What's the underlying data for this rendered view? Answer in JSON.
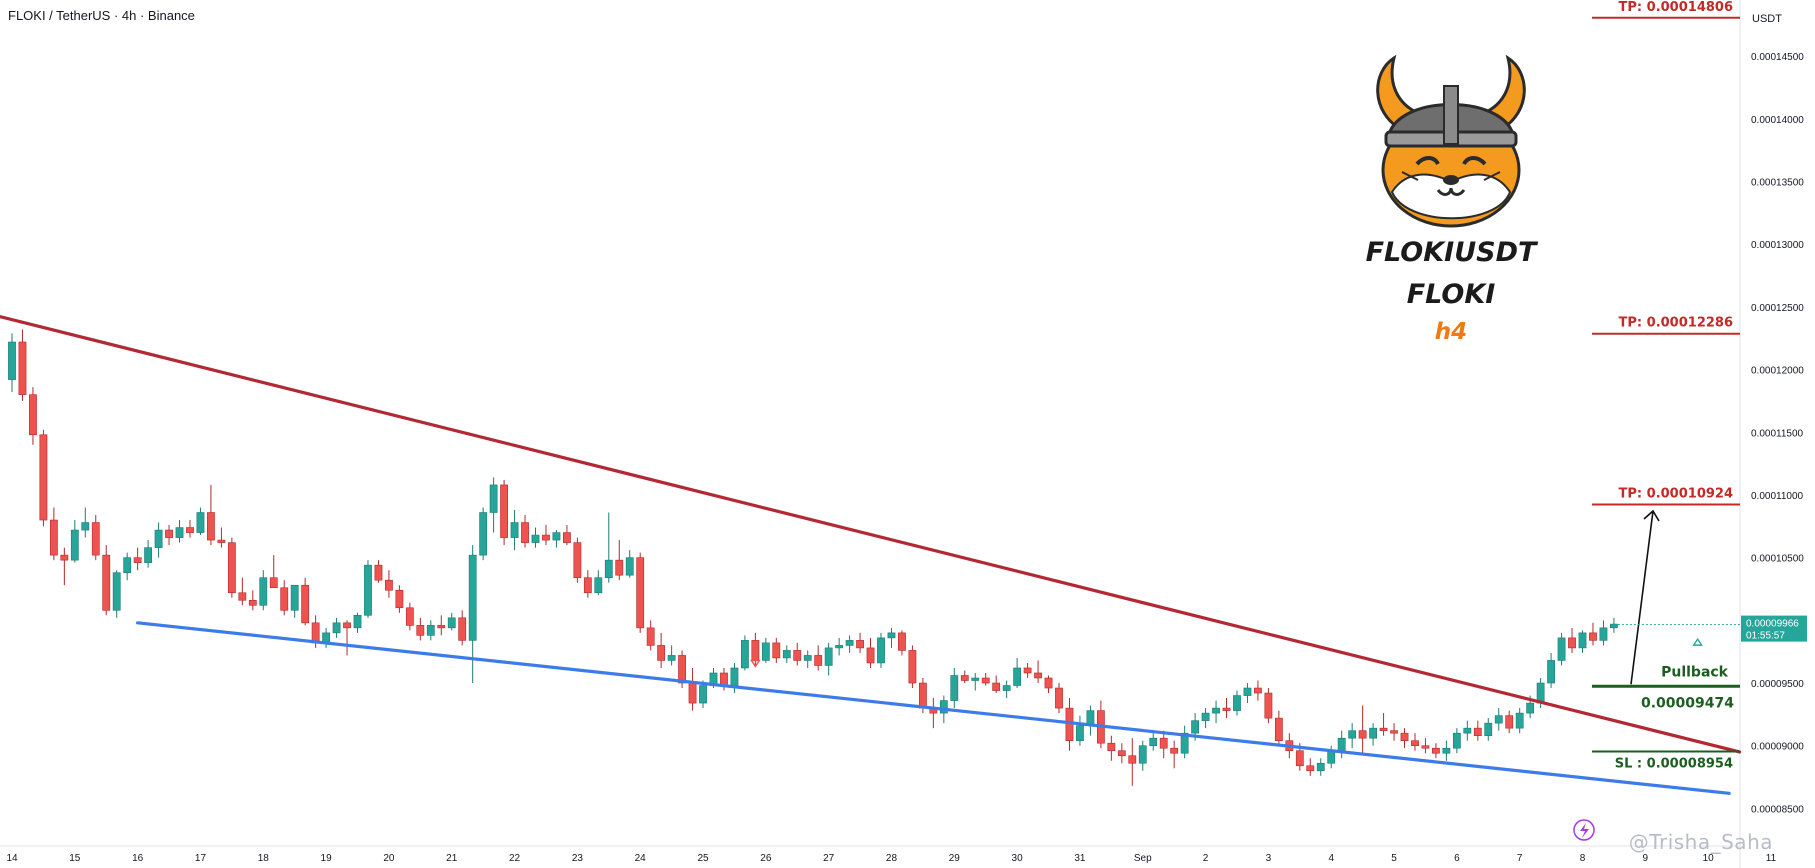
{
  "header": {
    "title": "FLOKI / TetherUS · 4h · Binance"
  },
  "brand": {
    "pair": "FLOKIUSDT",
    "name": "FLOKI",
    "timeframe": "h4"
  },
  "watermark": {
    "text": "@Trisha_Saha"
  },
  "chart_data": {
    "type": "candlestick",
    "symbol": "FLOKIUSDT",
    "timeframe": "4h",
    "exchange": "Binance",
    "axis_currency": "USDT",
    "ylim": [
      8.2e-05,
      0.000149
    ],
    "y_ticks": [
      "0.00014500",
      "0.00014000",
      "0.00013500",
      "0.00013000",
      "0.00012500",
      "0.00012000",
      "0.00011500",
      "0.00011000",
      "0.00010500",
      "0.00010000",
      "0.00009500",
      "0.00009000",
      "0.00008500"
    ],
    "x_ticks": [
      {
        "label": "14",
        "index": 0
      },
      {
        "label": "15",
        "index": 6
      },
      {
        "label": "16",
        "index": 12
      },
      {
        "label": "17",
        "index": 18
      },
      {
        "label": "18",
        "index": 24
      },
      {
        "label": "19",
        "index": 30
      },
      {
        "label": "20",
        "index": 36
      },
      {
        "label": "21",
        "index": 42
      },
      {
        "label": "22",
        "index": 48
      },
      {
        "label": "23",
        "index": 54
      },
      {
        "label": "24",
        "index": 60
      },
      {
        "label": "25",
        "index": 66
      },
      {
        "label": "26",
        "index": 72
      },
      {
        "label": "27",
        "index": 78
      },
      {
        "label": "28",
        "index": 84
      },
      {
        "label": "29",
        "index": 90
      },
      {
        "label": "30",
        "index": 96
      },
      {
        "label": "31",
        "index": 102
      },
      {
        "label": "Sep",
        "index": 108
      },
      {
        "label": "2",
        "index": 114
      },
      {
        "label": "3",
        "index": 120
      },
      {
        "label": "4",
        "index": 126
      },
      {
        "label": "5",
        "index": 132
      },
      {
        "label": "6",
        "index": 138
      },
      {
        "label": "7",
        "index": 144
      },
      {
        "label": "8",
        "index": 150
      },
      {
        "label": "9",
        "index": 156
      },
      {
        "label": "10",
        "index": 162
      },
      {
        "label": "11",
        "index": 168
      }
    ],
    "candles": [
      [
        0.0001192,
        0.0001229,
        0.0001182,
        0.0001222
      ],
      [
        0.0001222,
        0.0001232,
        0.0001175,
        0.000118
      ],
      [
        0.000118,
        0.0001186,
        0.000114,
        0.0001148
      ],
      [
        0.0001148,
        0.0001152,
        0.0001075,
        0.000108
      ],
      [
        0.000108,
        0.000109,
        0.0001048,
        0.0001052
      ],
      [
        0.0001052,
        0.0001058,
        0.0001028,
        0.0001048
      ],
      [
        0.0001048,
        0.000108,
        0.0001046,
        0.0001072
      ],
      [
        0.0001072,
        0.000109,
        0.0001066,
        0.0001078
      ],
      [
        0.0001078,
        0.0001084,
        0.0001048,
        0.0001052
      ],
      [
        0.0001052,
        0.000106,
        0.0001004,
        0.0001008
      ],
      [
        0.0001008,
        0.000104,
        0.0001002,
        0.0001038
      ],
      [
        0.0001038,
        0.0001054,
        0.0001032,
        0.000105
      ],
      [
        0.000105,
        0.0001058,
        0.000104,
        0.0001046
      ],
      [
        0.0001046,
        0.0001064,
        0.0001042,
        0.0001058
      ],
      [
        0.0001058,
        0.0001078,
        0.000105,
        0.0001072
      ],
      [
        0.0001072,
        0.0001076,
        0.000106,
        0.0001066
      ],
      [
        0.0001066,
        0.000108,
        0.0001062,
        0.0001074
      ],
      [
        0.0001074,
        0.000108,
        0.0001066,
        0.000107
      ],
      [
        0.000107,
        0.000109,
        0.0001068,
        0.0001086
      ],
      [
        0.0001086,
        0.0001108,
        0.000106,
        0.0001064
      ],
      [
        0.0001064,
        0.0001074,
        0.0001058,
        0.0001062
      ],
      [
        0.0001062,
        0.0001066,
        0.0001018,
        0.0001022
      ],
      [
        0.0001022,
        0.0001034,
        0.0001012,
        0.0001016
      ],
      [
        0.0001016,
        0.0001024,
        0.0001008,
        0.0001012
      ],
      [
        0.0001012,
        0.000104,
        0.0001008,
        0.0001034
      ],
      [
        0.0001034,
        0.0001052,
        0.0001028,
        0.0001026
      ],
      [
        0.0001026,
        0.0001032,
        0.0001004,
        0.0001008
      ],
      [
        0.0001008,
        0.0001026,
        0.0001002,
        0.0001028
      ],
      [
        0.0001028,
        0.0001034,
        9.96e-05,
        9.98e-05
      ],
      [
        9.98e-05,
        0.0001004,
        9.78e-05,
        9.82e-05
      ],
      [
        9.82e-05,
        9.94e-05,
        9.78e-05,
        9.9e-05
      ],
      [
        9.9e-05,
        0.0001002,
        9.86e-05,
        9.98e-05
      ],
      [
        9.98e-05,
        0.0001,
        9.72e-05,
        9.94e-05
      ],
      [
        9.94e-05,
        0.0001006,
        9.9e-05,
        0.0001004
      ],
      [
        0.0001004,
        0.0001048,
        0.0001002,
        0.0001044
      ],
      [
        0.0001044,
        0.0001048,
        0.000103,
        0.0001032
      ],
      [
        0.0001032,
        0.000104,
        0.0001018,
        0.0001024
      ],
      [
        0.0001024,
        0.0001028,
        0.0001006,
        0.000101
      ],
      [
        0.000101,
        0.0001014,
        9.92e-05,
        9.96e-05
      ],
      [
        9.96e-05,
        0.0001002,
        9.84e-05,
        9.88e-05
      ],
      [
        9.88e-05,
        0.0001,
        9.84e-05,
        9.96e-05
      ],
      [
        9.96e-05,
        0.0001004,
        9.88e-05,
        9.94e-05
      ],
      [
        9.94e-05,
        0.0001006,
        9.92e-05,
        0.0001002
      ],
      [
        0.0001002,
        0.0001008,
        9.8e-05,
        9.84e-05
      ],
      [
        9.84e-05,
        0.000106,
        9.5e-05,
        0.0001052
      ],
      [
        0.0001052,
        0.000109,
        0.0001048,
        0.0001086
      ],
      [
        0.0001086,
        0.0001114,
        0.000107,
        0.0001108
      ],
      [
        0.0001108,
        0.0001112,
        0.000106,
        0.0001066
      ],
      [
        0.0001066,
        0.0001088,
        0.0001056,
        0.0001078
      ],
      [
        0.0001078,
        0.0001084,
        0.0001058,
        0.0001062
      ],
      [
        0.0001062,
        0.0001074,
        0.0001058,
        0.0001068
      ],
      [
        0.0001068,
        0.0001076,
        0.000106,
        0.0001064
      ],
      [
        0.0001064,
        0.0001072,
        0.0001058,
        0.000107
      ],
      [
        0.000107,
        0.0001076,
        0.000106,
        0.0001062
      ],
      [
        0.0001062,
        0.0001066,
        0.000103,
        0.0001034
      ],
      [
        0.0001034,
        0.000104,
        0.0001018,
        0.0001022
      ],
      [
        0.0001022,
        0.000104,
        0.000102,
        0.0001034
      ],
      [
        0.0001034,
        0.0001086,
        0.000103,
        0.0001048
      ],
      [
        0.0001048,
        0.0001064,
        0.0001032,
        0.0001036
      ],
      [
        0.0001036,
        0.0001056,
        0.0001034,
        0.000105
      ],
      [
        0.000105,
        0.0001054,
        9.9e-05,
        9.94e-05
      ],
      [
        9.94e-05,
        0.0001,
        9.76e-05,
        9.8e-05
      ],
      [
        9.8e-05,
        9.9e-05,
        9.62e-05,
        9.68e-05
      ],
      [
        9.68e-05,
        9.8e-05,
        9.64e-05,
        9.72e-05
      ],
      [
        9.72e-05,
        9.76e-05,
        9.46e-05,
        9.5e-05
      ],
      [
        9.5e-05,
        9.62e-05,
        9.28e-05,
        9.34e-05
      ],
      [
        9.34e-05,
        9.52e-05,
        9.3e-05,
        9.48e-05
      ],
      [
        9.48e-05,
        9.62e-05,
        9.46e-05,
        9.58e-05
      ],
      [
        9.58e-05,
        9.62e-05,
        9.44e-05,
        9.48e-05
      ],
      [
        9.48e-05,
        9.66e-05,
        9.42e-05,
        9.62e-05
      ],
      [
        9.62e-05,
        9.88e-05,
        9.6e-05,
        9.84e-05
      ],
      [
        9.84e-05,
        9.9e-05,
        9.64e-05,
        9.68e-05
      ],
      [
        9.68e-05,
        9.86e-05,
        9.66e-05,
        9.82e-05
      ],
      [
        9.82e-05,
        9.86e-05,
        9.66e-05,
        9.7e-05
      ],
      [
        9.7e-05,
        9.8e-05,
        9.66e-05,
        9.76e-05
      ],
      [
        9.76e-05,
        9.82e-05,
        9.64e-05,
        9.68e-05
      ],
      [
        9.68e-05,
        9.76e-05,
        9.62e-05,
        9.72e-05
      ],
      [
        9.72e-05,
        9.8e-05,
        9.6e-05,
        9.64e-05
      ],
      [
        9.64e-05,
        9.82e-05,
        9.56e-05,
        9.78e-05
      ],
      [
        9.78e-05,
        9.86e-05,
        9.72e-05,
        9.8e-05
      ],
      [
        9.8e-05,
        9.88e-05,
        9.74e-05,
        9.84e-05
      ],
      [
        9.84e-05,
        9.9e-05,
        9.74e-05,
        9.78e-05
      ],
      [
        9.78e-05,
        9.86e-05,
        9.62e-05,
        9.66e-05
      ],
      [
        9.66e-05,
        9.9e-05,
        9.62e-05,
        9.86e-05
      ],
      [
        9.86e-05,
        9.94e-05,
        9.78e-05,
        9.9e-05
      ],
      [
        9.9e-05,
        9.92e-05,
        9.72e-05,
        9.76e-05
      ],
      [
        9.76e-05,
        9.8e-05,
        9.46e-05,
        9.5e-05
      ],
      [
        9.5e-05,
        9.54e-05,
        9.26e-05,
        9.3e-05
      ],
      [
        9.3e-05,
        9.38e-05,
        9.14e-05,
        9.26e-05
      ],
      [
        9.26e-05,
        9.4e-05,
        9.18e-05,
        9.36e-05
      ],
      [
        9.36e-05,
        9.62e-05,
        9.3e-05,
        9.56e-05
      ],
      [
        9.56e-05,
        9.6e-05,
        9.5e-05,
        9.52e-05
      ],
      [
        9.52e-05,
        9.58e-05,
        9.44e-05,
        9.54e-05
      ],
      [
        9.54e-05,
        9.58e-05,
        9.48e-05,
        9.5e-05
      ],
      [
        9.5e-05,
        9.56e-05,
        9.42e-05,
        9.44e-05
      ],
      [
        9.44e-05,
        9.52e-05,
        9.38e-05,
        9.48e-05
      ],
      [
        9.48e-05,
        9.7e-05,
        9.46e-05,
        9.62e-05
      ],
      [
        9.62e-05,
        9.66e-05,
        9.54e-05,
        9.58e-05
      ],
      [
        9.58e-05,
        9.68e-05,
        9.5e-05,
        9.54e-05
      ],
      [
        9.54e-05,
        9.56e-05,
        9.42e-05,
        9.46e-05
      ],
      [
        9.46e-05,
        9.5e-05,
        9.26e-05,
        9.3e-05
      ],
      [
        9.3e-05,
        9.38e-05,
        8.96e-05,
        9.04e-05
      ],
      [
        9.04e-05,
        9.24e-05,
        9e-05,
        9.16e-05
      ],
      [
        9.16e-05,
        9.32e-05,
        9.08e-05,
        9.28e-05
      ],
      [
        9.28e-05,
        9.36e-05,
        8.98e-05,
        9.02e-05
      ],
      [
        9.02e-05,
        9.08e-05,
        8.88e-05,
        8.96e-05
      ],
      [
        8.96e-05,
        9.02e-05,
        8.86e-05,
        8.92e-05
      ],
      [
        8.92e-05,
        9.06e-05,
        8.68e-05,
        8.86e-05
      ],
      [
        8.86e-05,
        9.04e-05,
        8.8e-05,
        9e-05
      ],
      [
        9e-05,
        9.12e-05,
        8.96e-05,
        9.06e-05
      ],
      [
        9.06e-05,
        9.12e-05,
        8.9e-05,
        8.98e-05
      ],
      [
        8.98e-05,
        9.04e-05,
        8.82e-05,
        8.94e-05
      ],
      [
        8.94e-05,
        9.16e-05,
        8.9e-05,
        9.1e-05
      ],
      [
        9.1e-05,
        9.26e-05,
        9.04e-05,
        9.2e-05
      ],
      [
        9.2e-05,
        9.3e-05,
        9.14e-05,
        9.26e-05
      ],
      [
        9.26e-05,
        9.36e-05,
        9.18e-05,
        9.3e-05
      ],
      [
        9.3e-05,
        9.38e-05,
        9.22e-05,
        9.28e-05
      ],
      [
        9.28e-05,
        9.44e-05,
        9.24e-05,
        9.4e-05
      ],
      [
        9.4e-05,
        9.5e-05,
        9.34e-05,
        9.46e-05
      ],
      [
        9.46e-05,
        9.52e-05,
        9.36e-05,
        9.42e-05
      ],
      [
        9.42e-05,
        9.46e-05,
        9.18e-05,
        9.22e-05
      ],
      [
        9.22e-05,
        9.28e-05,
        9e-05,
        9.04e-05
      ],
      [
        9.04e-05,
        9.1e-05,
        8.9e-05,
        8.96e-05
      ],
      [
        8.96e-05,
        9.02e-05,
        8.8e-05,
        8.84e-05
      ],
      [
        8.84e-05,
        8.9e-05,
        8.76e-05,
        8.8e-05
      ],
      [
        8.8e-05,
        8.9e-05,
        8.76e-05,
        8.86e-05
      ],
      [
        8.86e-05,
        9e-05,
        8.82e-05,
        8.96e-05
      ],
      [
        8.96e-05,
        9.12e-05,
        8.9e-05,
        9.06e-05
      ],
      [
        9.06e-05,
        9.18e-05,
        8.98e-05,
        9.12e-05
      ],
      [
        9.12e-05,
        9.32e-05,
        8.94e-05,
        9.06e-05
      ],
      [
        9.06e-05,
        9.18e-05,
        9e-05,
        9.14e-05
      ],
      [
        9.14e-05,
        9.26e-05,
        9.08e-05,
        9.12e-05
      ],
      [
        9.12e-05,
        9.18e-05,
        9.04e-05,
        9.1e-05
      ],
      [
        9.1e-05,
        9.14e-05,
        8.98e-05,
        9.04e-05
      ],
      [
        9.04e-05,
        9.1e-05,
        8.96e-05,
        9e-05
      ],
      [
        9e-05,
        9.06e-05,
        8.94e-05,
        8.98e-05
      ],
      [
        8.98e-05,
        9.02e-05,
        8.9e-05,
        8.94e-05
      ],
      [
        8.94e-05,
        9.04e-05,
        8.88e-05,
        8.98e-05
      ],
      [
        8.98e-05,
        9.14e-05,
        8.94e-05,
        9.1e-05
      ],
      [
        9.1e-05,
        9.2e-05,
        9.04e-05,
        9.14e-05
      ],
      [
        9.14e-05,
        9.2e-05,
        9.04e-05,
        9.08e-05
      ],
      [
        9.08e-05,
        9.22e-05,
        9.04e-05,
        9.18e-05
      ],
      [
        9.18e-05,
        9.3e-05,
        9.12e-05,
        9.24e-05
      ],
      [
        9.24e-05,
        9.28e-05,
        9.1e-05,
        9.14e-05
      ],
      [
        9.14e-05,
        9.3e-05,
        9.1e-05,
        9.26e-05
      ],
      [
        9.26e-05,
        9.4e-05,
        9.22e-05,
        9.34e-05
      ],
      [
        9.34e-05,
        9.54e-05,
        9.3e-05,
        9.5e-05
      ],
      [
        9.5e-05,
        9.74e-05,
        9.46e-05,
        9.68e-05
      ],
      [
        9.68e-05,
        9.9e-05,
        9.64e-05,
        9.86e-05
      ],
      [
        9.86e-05,
        9.94e-05,
        9.74e-05,
        9.78e-05
      ],
      [
        9.78e-05,
        9.92e-05,
        9.74e-05,
        9.9e-05
      ],
      [
        9.9e-05,
        9.98e-05,
        9.8e-05,
        9.84e-05
      ],
      [
        9.84e-05,
        0.0001,
        9.8e-05,
        9.94e-05
      ],
      [
        9.94e-05,
        0.0001002,
        9.9e-05,
        9.97e-05
      ]
    ],
    "trendlines": [
      {
        "name": "resistance",
        "color": "#b22833",
        "points": [
          [
            -2,
            0.0001244
          ],
          [
            165,
            8.95e-05
          ]
        ]
      },
      {
        "name": "support",
        "color": "#3d7be8",
        "points": [
          [
            12,
            9.98e-05
          ],
          [
            164,
            8.62e-05
          ]
        ]
      }
    ],
    "levels": [
      {
        "label": "TP: 0.00014806",
        "value": 0.00014806,
        "color": "#c62828"
      },
      {
        "label": "TP: 0.00012286",
        "value": 0.00012286,
        "color": "#c62828"
      },
      {
        "label": "TP: 0.00010924",
        "value": 0.00010924,
        "color": "#c62828"
      },
      {
        "label": "Pullback",
        "value": 9.474e-05,
        "color": "#1b5e20",
        "value_label": "0.00009474"
      },
      {
        "label": "SL : 0.00008954",
        "value": 8.954e-05,
        "color": "#1b5e20"
      }
    ],
    "projection_arrow": {
      "from": [
        9.474e-05
      ],
      "to": [
        0.0001092
      ]
    },
    "signal_markers": [
      {
        "type": "sell",
        "index": 71,
        "value": 9.68e-05
      },
      {
        "type": "buy",
        "index": 161,
        "value": 9.85e-05
      }
    ],
    "last_price": {
      "value": 9.966e-05,
      "label": "0.00009966",
      "countdown": "01:55:57"
    },
    "colors": {
      "up": "#26a69a",
      "down": "#ef5350",
      "bg": "#ffffff",
      "axis_text": "#131722"
    }
  }
}
